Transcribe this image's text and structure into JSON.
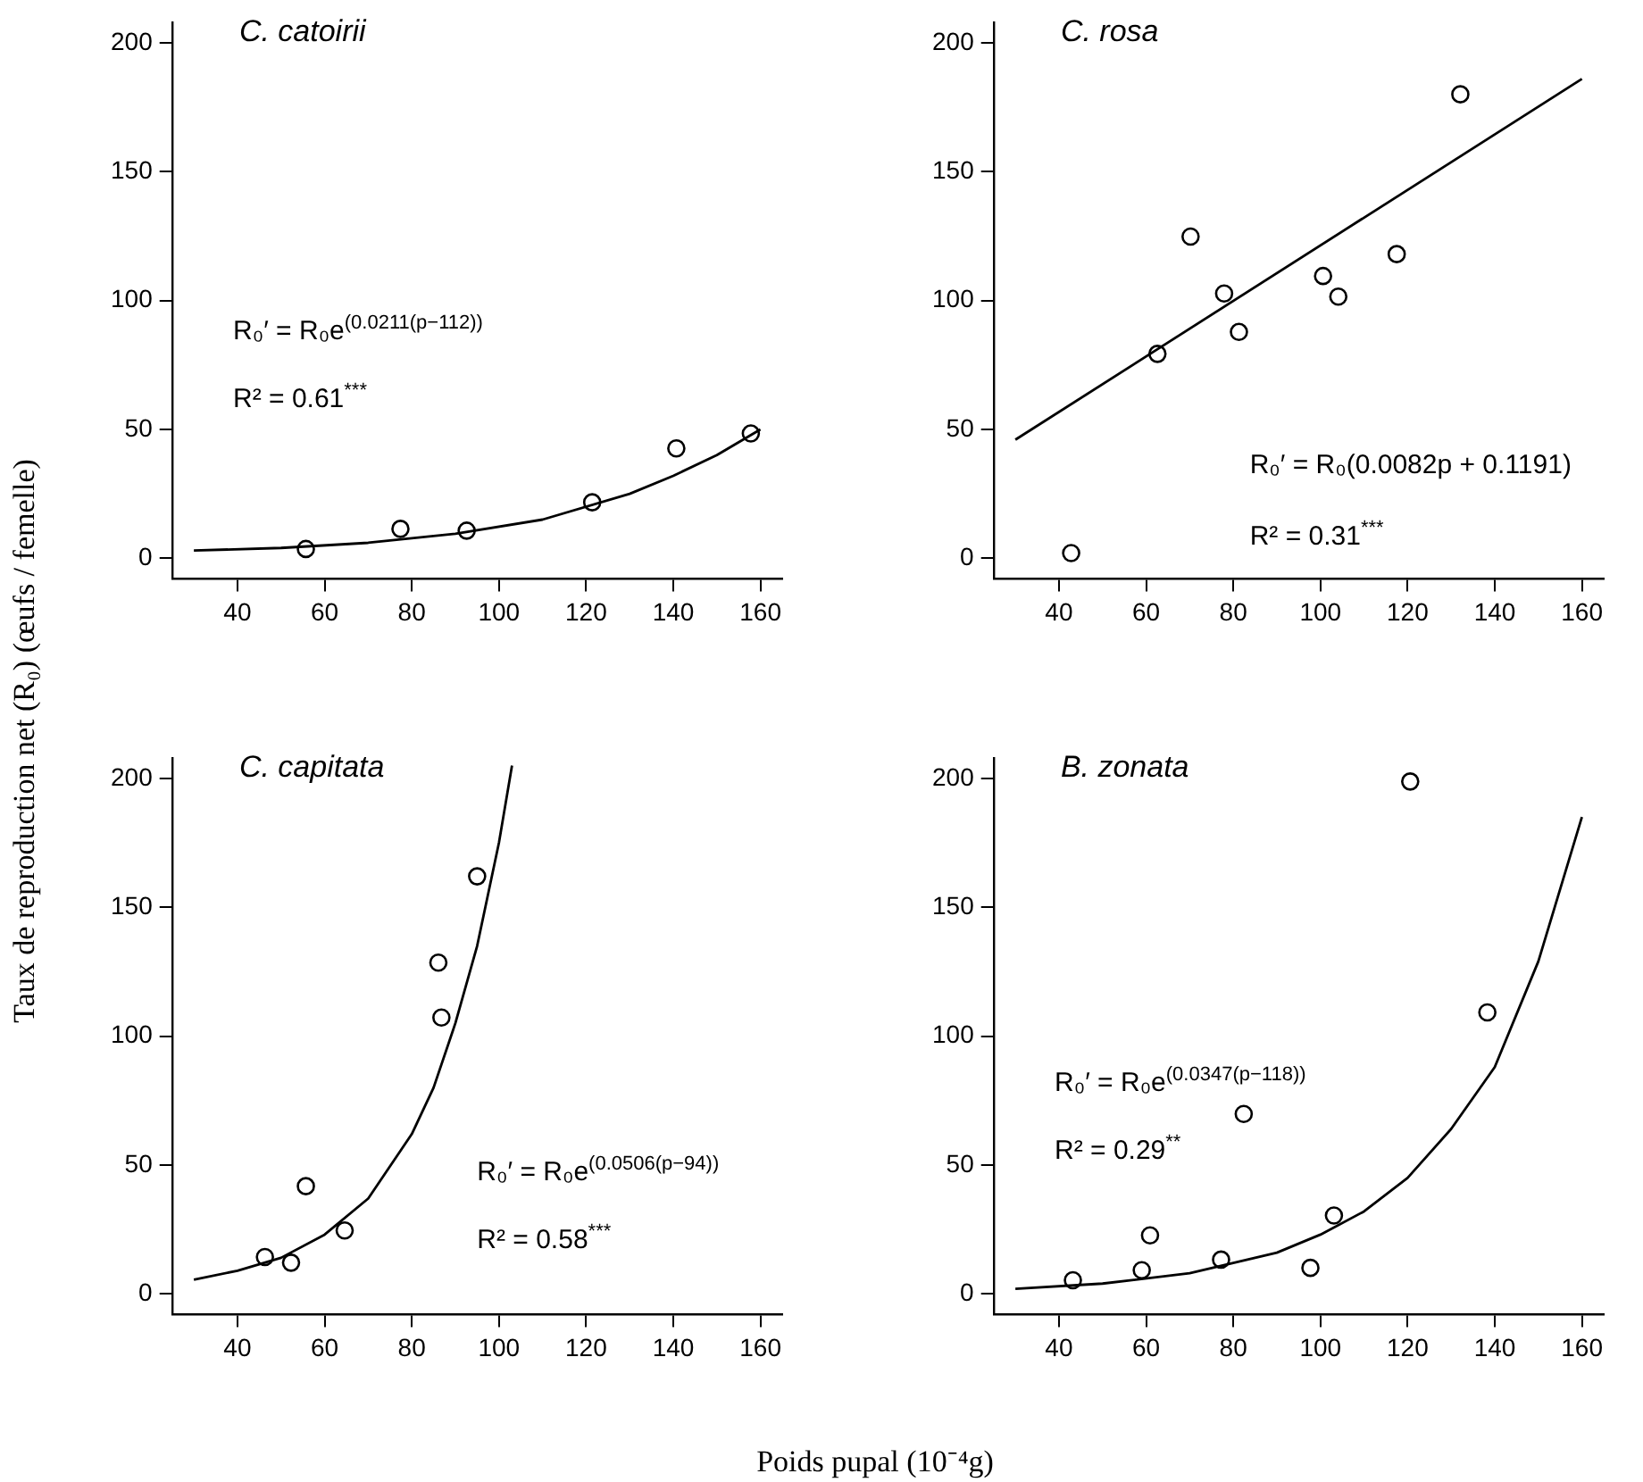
{
  "chart_data": [
    {
      "type": "scatter",
      "title": "C. catoirii",
      "ylabel": "Taux de reproduction net (R₀) (œufs / femelle)",
      "xlim": [
        25,
        165
      ],
      "xticks": [
        40,
        60,
        80,
        100,
        120,
        140,
        160
      ],
      "ylim": [
        -8,
        208
      ],
      "yticks": [
        0,
        50,
        100,
        150,
        200
      ],
      "grid": false,
      "legend": false,
      "annotations": [
        "R₀′ = R₀e$^{(0.0211(p−112))}$",
        "R² = 0.61$^{***}$"
      ],
      "series": [
        {
          "type": "scatter",
          "marker": "circle",
          "color": "#000000",
          "x": [
            55.7,
            77.4,
            92.6,
            121.4,
            140.7,
            157.8
          ],
          "values": [
            3.6,
            11.4,
            10.7,
            21.7,
            42.6,
            48.4
          ]
        },
        {
          "type": "line",
          "marker": "none",
          "color": "#000000",
          "x": [
            30,
            50,
            70,
            90,
            110,
            130,
            140,
            150,
            160
          ],
          "values": [
            3,
            4,
            6,
            9.5,
            15,
            25,
            32,
            40,
            50
          ]
        }
      ]
    },
    {
      "type": "scatter",
      "title": "C. rosa",
      "xlim": [
        25,
        165
      ],
      "xticks": [
        40,
        60,
        80,
        100,
        120,
        140,
        160
      ],
      "ylim": [
        -8,
        208
      ],
      "yticks": [
        0,
        50,
        100,
        150,
        200
      ],
      "grid": false,
      "legend": false,
      "annotations": [
        "R₀′ = R₀(0.0082p + 0.1191)",
        "R² = 0.31$^{***}$"
      ],
      "series": [
        {
          "type": "scatter",
          "marker": "circle",
          "color": "#000000",
          "x": [
            42.8,
            62.6,
            70.2,
            77.9,
            81.3,
            100.6,
            104.1,
            117.5,
            132.1
          ],
          "values": [
            2,
            79.3,
            124.8,
            102.7,
            87.8,
            109.5,
            101.5,
            118,
            180
          ]
        },
        {
          "type": "line",
          "marker": "none",
          "color": "#000000",
          "x": [
            30,
            160
          ],
          "values": [
            46,
            186
          ]
        }
      ]
    },
    {
      "type": "scatter",
      "title": "C. capitata",
      "xlim": [
        25,
        165
      ],
      "xticks": [
        40,
        60,
        80,
        100,
        120,
        140,
        160
      ],
      "ylim": [
        -8,
        208
      ],
      "yticks": [
        0,
        50,
        100,
        150,
        200
      ],
      "grid": false,
      "legend": false,
      "annotations": [
        "R₀′ = R₀e$^{(0.0506(p−94))}$",
        "R² = 0.58$^{***}$"
      ],
      "series": [
        {
          "type": "scatter",
          "marker": "circle",
          "color": "#000000",
          "x": [
            46.3,
            52.3,
            55.7,
            64.6,
            86.1,
            86.8,
            95.0
          ],
          "values": [
            14.3,
            12.1,
            41.8,
            24.6,
            128.5,
            107.2,
            162
          ]
        },
        {
          "type": "line",
          "marker": "none",
          "color": "#000000",
          "x": [
            30,
            40,
            50,
            60,
            70,
            80,
            85,
            90,
            95,
            100,
            103
          ],
          "values": [
            5.5,
            9,
            14,
            23,
            37,
            62,
            80,
            105,
            135,
            175,
            205
          ]
        }
      ]
    },
    {
      "type": "scatter",
      "title": "B. zonata",
      "xlabel": "Poids pupal (10⁻⁴g)",
      "xlim": [
        25,
        165
      ],
      "xticks": [
        40,
        60,
        80,
        100,
        120,
        140,
        160
      ],
      "ylim": [
        -8,
        208
      ],
      "yticks": [
        0,
        50,
        100,
        150,
        200
      ],
      "grid": false,
      "legend": false,
      "annotations": [
        "R₀′ = R₀e$^{(0.0347(p−118))}$",
        "R² = 0.29$^{**}$"
      ],
      "series": [
        {
          "type": "scatter",
          "marker": "circle",
          "color": "#000000",
          "x": [
            43.2,
            59.0,
            60.9,
            77.2,
            82.4,
            97.7,
            103.1,
            120.6,
            138.3
          ],
          "values": [
            5.3,
            9.2,
            22.7,
            13.3,
            69.8,
            10.1,
            30.4,
            198.8,
            109.2
          ]
        },
        {
          "type": "line",
          "marker": "none",
          "color": "#000000",
          "x": [
            30,
            50,
            70,
            90,
            100,
            110,
            120,
            130,
            140,
            150,
            160
          ],
          "values": [
            2,
            4,
            8,
            16,
            23,
            32,
            45,
            64,
            88,
            129,
            185
          ]
        }
      ]
    }
  ]
}
